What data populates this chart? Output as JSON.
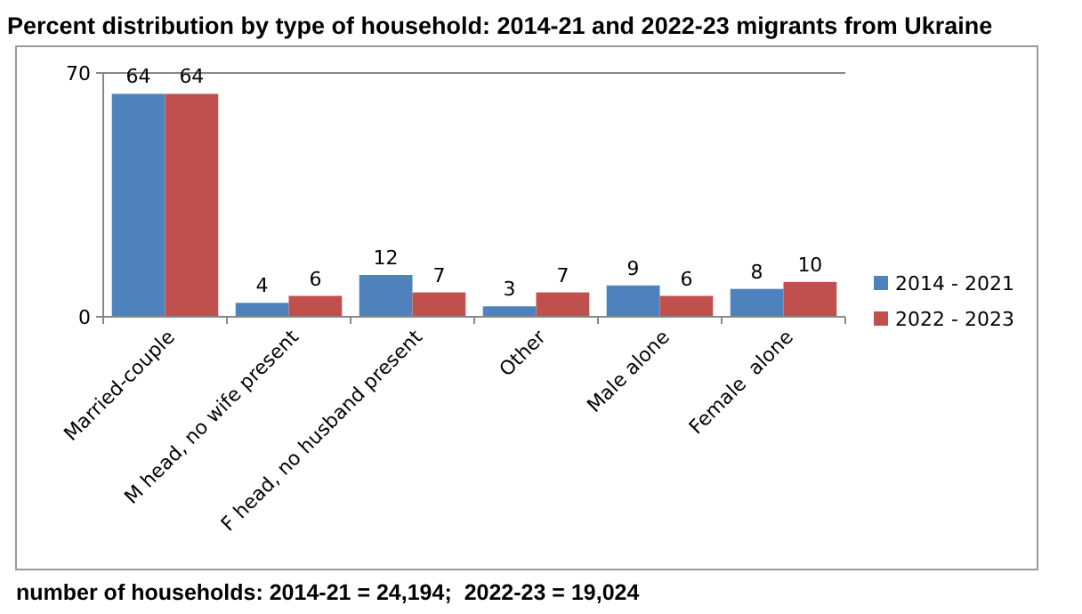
{
  "chart_data": {
    "type": "bar",
    "title": "Percent distribution by type of household: 2014-21 and 2022-23 migrants from Ukraine",
    "categories": [
      "Married-couple",
      "M head, no wife present",
      "F head, no husband present",
      "Other",
      "Male alone",
      "Female  alone"
    ],
    "series": [
      {
        "name": "2014 - 2021",
        "color": "#4f81bd",
        "values": [
          64,
          4,
          12,
          3,
          9,
          8
        ]
      },
      {
        "name": "2022 - 2023",
        "color": "#c0504d",
        "values": [
          64,
          6,
          7,
          7,
          6,
          10
        ]
      }
    ],
    "ylim": [
      0,
      70
    ],
    "yticks": [
      0,
      70
    ],
    "legend": "right",
    "data_labels": true,
    "annotations": [
      "number of households: 2014-21 = 24,194;  2022-23 = 19,024"
    ]
  }
}
